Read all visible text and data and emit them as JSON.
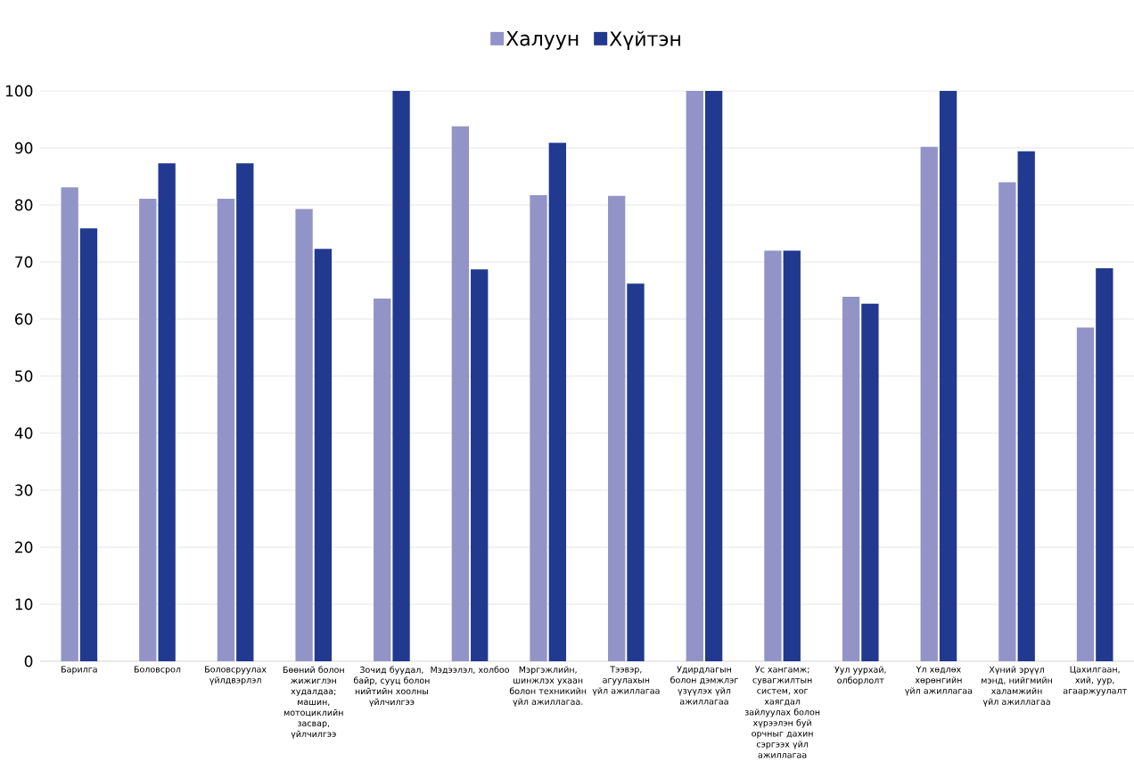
{
  "chart_data": {
    "type": "bar",
    "categories": [
      "Барилга",
      "Боловсрол",
      "Боловсруулах үйлдвэрлэл",
      "Бөөний болон жижиглэн худалдаа; машин, мотоциклийн засвар, үйлчилгээ",
      "Зочид буудал, байр, сууц болон нийтийн хоолны үйлчилгээ",
      "Мэдээлэл, холбоо",
      "Мэргэжлийн, шинжлэх ухаан болон техникийн үйл ажиллагаа.",
      "Тээвэр, агуулахын үйл ажиллагаа",
      "Удирдлагын болон дэмжлэг үзүүлэх үйл ажиллагаа",
      "Ус хангамж; сувагжилтын систем, хог хаягдал зайлуулах болон хүрээлэн буй орчныг дахин сэргээх үйл ажиллагаа",
      "Уул уурхай, олборлолт",
      "Үл хөдлөх хөрөнгийн үйл ажиллагаа",
      "Хүний эрүүл мэнд, нийгмийн халамжийн үйл ажиллагаа",
      "Цахилгаан, хий, уур, агааржуулалт"
    ],
    "series": [
      {
        "name": "Халуун",
        "color": "#9294c7",
        "values": [
          83.1,
          81.1,
          81.1,
          79.3,
          63.6,
          93.8,
          81.7,
          81.6,
          100,
          72,
          63.9,
          90.2,
          84.0,
          58.5
        ]
      },
      {
        "name": "Хүйтэн",
        "color": "#21398f",
        "values": [
          75.9,
          87.3,
          87.3,
          72.3,
          100,
          68.7,
          90.9,
          66.2,
          100,
          72,
          62.7,
          100,
          89.4,
          68.9
        ]
      }
    ],
    "ylim": [
      0,
      100
    ],
    "yticks": [
      0,
      10,
      20,
      30,
      40,
      50,
      60,
      70,
      80,
      90,
      100
    ],
    "grid": "y",
    "legend": "top"
  }
}
